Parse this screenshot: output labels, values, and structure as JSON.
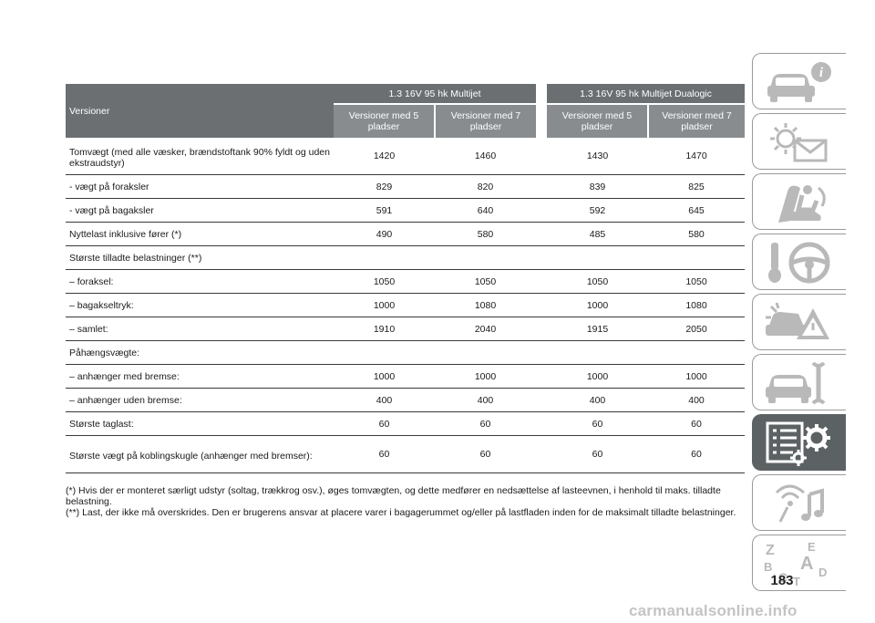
{
  "table": {
    "version_header": "Versioner",
    "groups": [
      "1.3 16V 95 hk Multijet",
      "1.3 16V 95 hk Multijet Dualogic"
    ],
    "subheaders": [
      "Versioner med 5 pladser",
      "Versioner med 7 pladser",
      "Versioner med 5 pladser",
      "Versioner med 7 pladser"
    ],
    "rows": [
      {
        "label": "Tomvægt (med alle væsker, brændstoftank 90% fyldt og uden ekstraudstyr)",
        "values": [
          "1420",
          "1460",
          "1430",
          "1470"
        ]
      },
      {
        "label": "- vægt på foraksler",
        "values": [
          "829",
          "820",
          "839",
          "825"
        ]
      },
      {
        "label": "- vægt på bagaksler",
        "values": [
          "591",
          "640",
          "592",
          "645"
        ]
      },
      {
        "label": "Nyttelast inklusive fører (*)",
        "values": [
          "490",
          "580",
          "485",
          "580"
        ]
      },
      {
        "label": "Største tilladte belastninger (**)",
        "values": [
          "",
          "",
          "",
          ""
        ]
      },
      {
        "label": "– foraksel:",
        "values": [
          "1050",
          "1050",
          "1050",
          "1050"
        ]
      },
      {
        "label": "– bagakseltryk:",
        "values": [
          "1000",
          "1080",
          "1000",
          "1080"
        ]
      },
      {
        "label": "– samlet:",
        "values": [
          "1910",
          "2040",
          "1915",
          "2050"
        ]
      },
      {
        "label": "Påhængsvægte:",
        "values": [
          "",
          "",
          "",
          ""
        ]
      },
      {
        "label": "– anhænger med bremse:",
        "values": [
          "1000",
          "1000",
          "1000",
          "1000"
        ]
      },
      {
        "label": "– anhænger uden bremse:",
        "values": [
          "400",
          "400",
          "400",
          "400"
        ]
      },
      {
        "label": "Største taglast:",
        "values": [
          "60",
          "60",
          "60",
          "60"
        ]
      },
      {
        "label": "Største vægt på koblingskugle (anhænger med bremser):",
        "values": [
          "60",
          "60",
          "60",
          "60"
        ]
      }
    ]
  },
  "notes": [
    "(*) Hvis der er monteret særligt udstyr (soltag, trækkrog osv.), øges tomvægten, og dette medfører en nedsættelse af lasteevnen, i henhold til maks. tilladte belastning.",
    "(**) Last, der ikke må overskrides. Den er brugerens ansvar at placere varer i bagagerummet og/eller på lastfladen inden for de maksimalt tilladte belastninger."
  ],
  "page_number": "183",
  "watermark": "carmanualsonline.info",
  "side_tabs": [
    {
      "icon": "car-info-icon"
    },
    {
      "icon": "warning-light-envelope-icon"
    },
    {
      "icon": "seat-airbag-icon"
    },
    {
      "icon": "key-steering-wheel-icon"
    },
    {
      "icon": "car-accident-warning-icon"
    },
    {
      "icon": "car-wrench-icon"
    },
    {
      "icon": "specs-list-gear-icon",
      "active": true
    },
    {
      "icon": "media-music-icon"
    },
    {
      "icon": "alphabet-index-icon",
      "letters": [
        "Z",
        "E",
        "A",
        "B",
        "C",
        "T",
        "D",
        "I"
      ]
    }
  ],
  "colors": {
    "header_dark": "#6b6f72",
    "header_light": "#888c8f",
    "active_tab": "#5c6264",
    "tab_border": "#9a9a9a"
  }
}
